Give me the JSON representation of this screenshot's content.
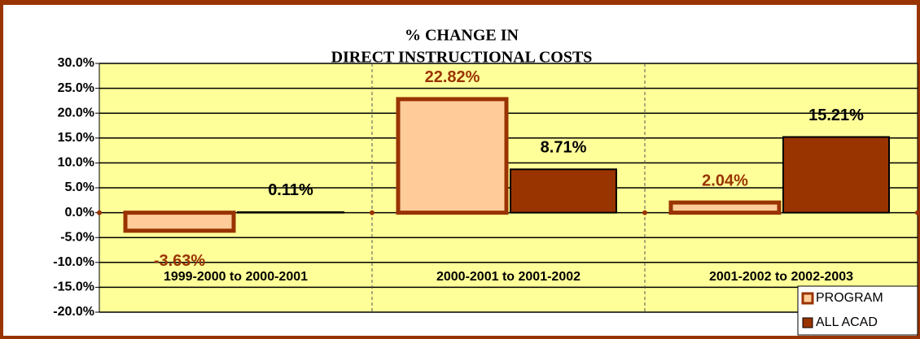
{
  "chart_data": {
    "type": "bar",
    "title": [
      "% CHANGE IN",
      "DIRECT INSTRUCTIONAL COSTS"
    ],
    "categories": [
      "1999-2000 to 2000-2001",
      "2000-2001 to 2001-2002",
      "2001-2002 to 2002-2003"
    ],
    "series": [
      {
        "name": "PROGRAM",
        "color": "#ffcc99",
        "values": [
          -3.63,
          22.82,
          2.04
        ],
        "value_labels": [
          "-3.63%",
          "22.82%",
          "2.04%"
        ]
      },
      {
        "name": "ALL ACAD",
        "color": "#993300",
        "values": [
          0.11,
          8.71,
          15.21
        ],
        "value_labels": [
          "0.11%",
          "8.71%",
          "15.21%"
        ]
      }
    ],
    "ylim": [
      -20,
      30
    ],
    "yticks": [
      {
        "value": -20,
        "label": "-20.0%"
      },
      {
        "value": -15,
        "label": "-15.0%"
      },
      {
        "value": -10,
        "label": "-10.0%"
      },
      {
        "value": -5,
        "label": "-5.0%"
      },
      {
        "value": 0,
        "label": "0.0%"
      },
      {
        "value": 5,
        "label": "5.0%"
      },
      {
        "value": 10,
        "label": "10.0%"
      },
      {
        "value": 15,
        "label": "15.0%"
      },
      {
        "value": 20,
        "label": "20.0%"
      },
      {
        "value": 25,
        "label": "25.0%"
      },
      {
        "value": 30,
        "label": "30.0%"
      }
    ],
    "grid": true,
    "legend": "bottom-right"
  }
}
